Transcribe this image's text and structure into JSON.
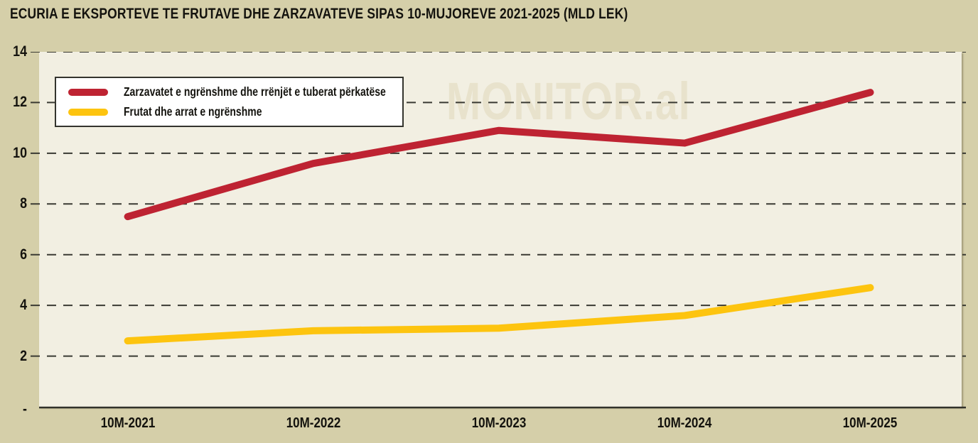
{
  "title": "ECURIA E EKSPORTEVE TE FRUTAVE DHE ZARZAVATEVE SIPAS 10-MUJOREVE 2021-2025 (MLD LEK)",
  "watermark": "MONITOR.al",
  "colors": {
    "page_background": "#d5cfa9",
    "plot_background": "#f2efe2",
    "gridline": "#3a3a33",
    "axis_line": "#31312a",
    "text": "#14130e",
    "watermark": "#e8e2cc",
    "legend_background": "#ffffff",
    "legend_border": "#34342e",
    "series_vegetables": "#be2332",
    "series_fruits": "#fdc40f"
  },
  "chart_data": {
    "type": "line",
    "title": "ECURIA E EKSPORTEVE TE FRUTAVE DHE ZARZAVATEVE SIPAS 10-MUJOREVE 2021-2025 (MLD LEK)",
    "unit": "MLD LEK",
    "categories": [
      "10M-2021",
      "10M-2022",
      "10M-2023",
      "10M-2024",
      "10M-2025"
    ],
    "series": [
      {
        "name": "Zarzavatet e ngrënshme dhe rrënjët e tuberat përkatëse",
        "color": "#be2332",
        "values": [
          7.5,
          9.6,
          10.9,
          10.4,
          12.4
        ]
      },
      {
        "name": "Frutat dhe arrat e ngrënshme",
        "color": "#fdc40f",
        "values": [
          2.6,
          3.0,
          3.1,
          3.6,
          4.7
        ]
      }
    ],
    "ylim": [
      0,
      14
    ],
    "ytick_step": 2,
    "yticks": [
      {
        "value": 0,
        "label": "-"
      },
      {
        "value": 2,
        "label": "2"
      },
      {
        "value": 4,
        "label": "4"
      },
      {
        "value": 6,
        "label": "6"
      },
      {
        "value": 8,
        "label": "8"
      },
      {
        "value": 10,
        "label": "10"
      },
      {
        "value": 12,
        "label": "12"
      },
      {
        "value": 14,
        "label": "14"
      }
    ],
    "grid": "horizontal-dashed",
    "legend_position": "top-left",
    "line_width": 10
  }
}
